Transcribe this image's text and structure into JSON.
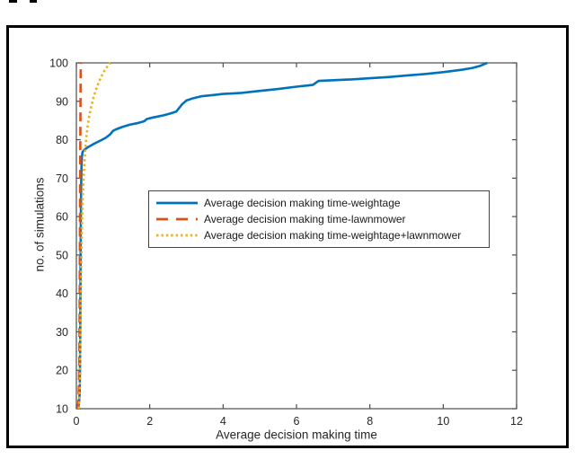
{
  "chart_data": {
    "type": "line",
    "title": "",
    "xlabel": "Average decision making time",
    "ylabel": "no. of simulations",
    "xlim": [
      0,
      12
    ],
    "ylim": [
      10,
      100
    ],
    "xticks": [
      0,
      2,
      4,
      6,
      8,
      10,
      12
    ],
    "yticks": [
      10,
      20,
      30,
      40,
      50,
      60,
      70,
      80,
      90,
      100
    ],
    "grid": false,
    "legend_position": "inside upper-left-center",
    "axis_color": "#262626",
    "box_color": "#4d4d4d",
    "figure_border_color": "#000000",
    "series": [
      {
        "name": "Average decision making time-weightage",
        "color": "#0072BD",
        "style": "solid",
        "points": [
          [
            0.05,
            10
          ],
          [
            0.07,
            11.5
          ],
          [
            0.09,
            14
          ],
          [
            0.1,
            22
          ],
          [
            0.11,
            40
          ],
          [
            0.12,
            58
          ],
          [
            0.13,
            68
          ],
          [
            0.14,
            73
          ],
          [
            0.15,
            75.5
          ],
          [
            0.17,
            76.8
          ],
          [
            0.22,
            77.4
          ],
          [
            0.32,
            78.1
          ],
          [
            0.45,
            78.8
          ],
          [
            0.55,
            79.3
          ],
          [
            0.68,
            79.9
          ],
          [
            0.8,
            80.5
          ],
          [
            0.92,
            81.4
          ],
          [
            1.0,
            82.3
          ],
          [
            1.08,
            82.7
          ],
          [
            1.25,
            83.3
          ],
          [
            1.45,
            83.9
          ],
          [
            1.65,
            84.3
          ],
          [
            1.85,
            84.8
          ],
          [
            1.92,
            85.4
          ],
          [
            2.1,
            85.8
          ],
          [
            2.35,
            86.3
          ],
          [
            2.55,
            86.8
          ],
          [
            2.72,
            87.3
          ],
          [
            2.78,
            88.0
          ],
          [
            2.88,
            89.2
          ],
          [
            3.0,
            90.2
          ],
          [
            3.15,
            90.7
          ],
          [
            3.4,
            91.3
          ],
          [
            3.7,
            91.6
          ],
          [
            4.0,
            91.9
          ],
          [
            4.5,
            92.2
          ],
          [
            5.0,
            92.7
          ],
          [
            5.5,
            93.2
          ],
          [
            6.0,
            93.8
          ],
          [
            6.3,
            94.1
          ],
          [
            6.45,
            94.3
          ],
          [
            6.6,
            95.3
          ],
          [
            7.0,
            95.5
          ],
          [
            7.5,
            95.7
          ],
          [
            8.0,
            96.0
          ],
          [
            8.5,
            96.3
          ],
          [
            9.0,
            96.7
          ],
          [
            9.5,
            97.1
          ],
          [
            10.0,
            97.6
          ],
          [
            10.5,
            98.2
          ],
          [
            10.8,
            98.7
          ],
          [
            11.0,
            99.2
          ],
          [
            11.1,
            99.6
          ],
          [
            11.2,
            100
          ]
        ]
      },
      {
        "name": "Average decision making time-lawnmower",
        "color": "#D95319",
        "style": "dashed",
        "points": [
          [
            0.03,
            10
          ],
          [
            0.05,
            11
          ],
          [
            0.06,
            13
          ],
          [
            0.08,
            22
          ],
          [
            0.09,
            40
          ],
          [
            0.1,
            65
          ],
          [
            0.11,
            85
          ],
          [
            0.115,
            95
          ],
          [
            0.12,
            100
          ]
        ]
      },
      {
        "name": "Average decision making time-weightage+lawnmower",
        "color": "#EDB120",
        "style": "dotted",
        "points": [
          [
            0.07,
            10
          ],
          [
            0.09,
            15
          ],
          [
            0.1,
            22
          ],
          [
            0.11,
            30
          ],
          [
            0.12,
            38
          ],
          [
            0.13,
            46
          ],
          [
            0.15,
            56
          ],
          [
            0.17,
            64
          ],
          [
            0.2,
            71
          ],
          [
            0.24,
            77
          ],
          [
            0.28,
            81.5
          ],
          [
            0.33,
            85
          ],
          [
            0.39,
            88
          ],
          [
            0.46,
            90.8
          ],
          [
            0.54,
            93.2
          ],
          [
            0.62,
            95.2
          ],
          [
            0.71,
            97
          ],
          [
            0.8,
            98.5
          ],
          [
            0.88,
            99.5
          ],
          [
            0.93,
            100
          ]
        ]
      }
    ]
  }
}
